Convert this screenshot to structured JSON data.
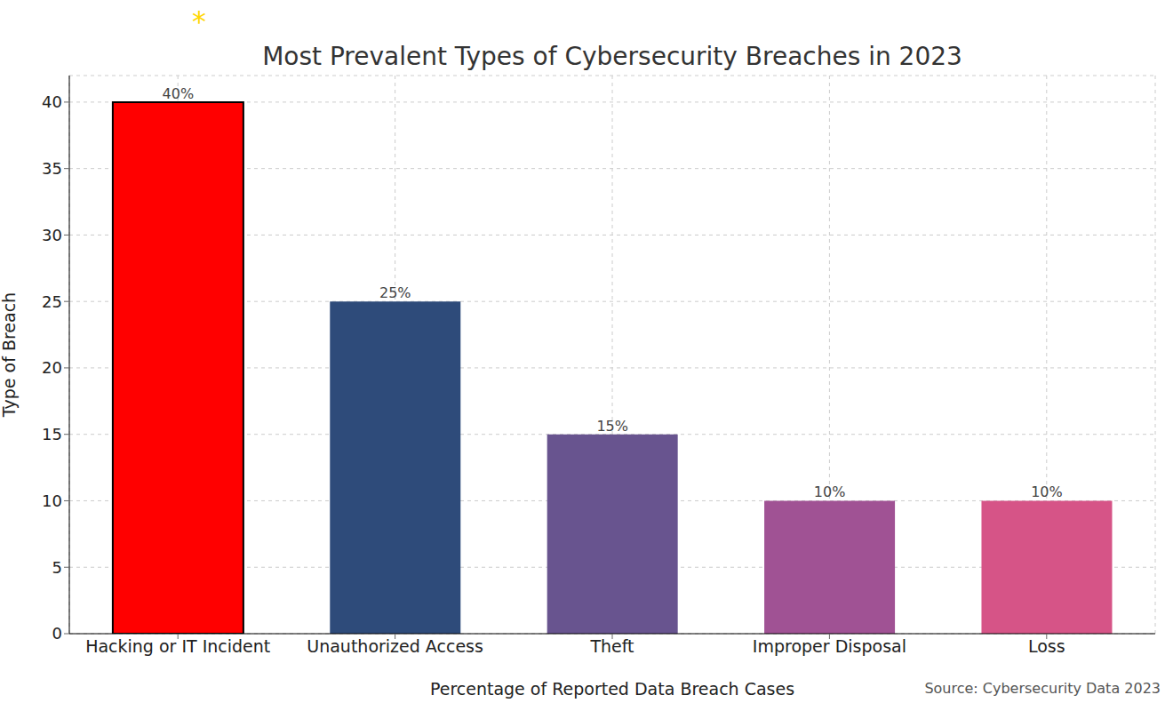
{
  "chart_data": {
    "type": "bar",
    "title": "Most Prevalent Types of Cybersecurity Breaches in 2023",
    "annotation": "*",
    "source": "Source: Cybersecurity Data 2023",
    "x_label": "Percentage of Reported Data Breach Cases",
    "y_label": "Type of Breach",
    "categories": [
      "Hacking or IT Incident",
      "Unauthorized Access",
      "Theft",
      "Improper Disposal",
      "Loss"
    ],
    "values": [
      40,
      25,
      15,
      10,
      10
    ],
    "value_labels": [
      "40%",
      "25%",
      "15%",
      "10%",
      "10%"
    ],
    "colors": [
      "#ff0000",
      "#2e4b7a",
      "#68548f",
      "#a05294",
      "#d65487"
    ],
    "ylim": [
      0,
      42
    ],
    "yticks": [
      0,
      5,
      10,
      15,
      20,
      25,
      30,
      35,
      40
    ],
    "grid": true,
    "data_labels": true
  }
}
